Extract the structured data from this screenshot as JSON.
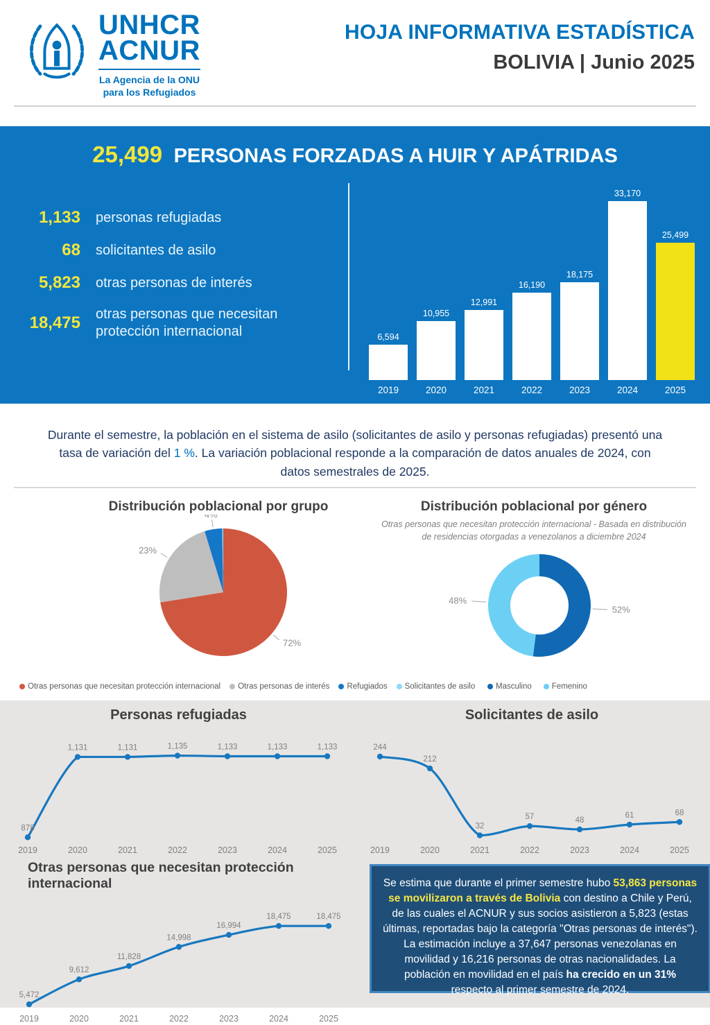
{
  "header": {
    "logo": {
      "line1": "UNHCR",
      "line2": "ACNUR",
      "tagline1": "La Agencia de la ONU",
      "tagline2": "para los Refugiados"
    },
    "title": "HOJA INFORMATIVA ESTADÍSTICA",
    "subtitle": "BOLIVIA | Junio 2025"
  },
  "banner": {
    "total": "25,499",
    "title": "PERSONAS FORZADAS A HUIR Y APÁTRIDAS",
    "stats": [
      {
        "value": "1,133",
        "label": "personas refugiadas"
      },
      {
        "value": "68",
        "label": "solicitantes de asilo"
      },
      {
        "value": "5,823",
        "label": "otras personas de interés"
      },
      {
        "value": "18,475",
        "label": "otras personas que necesitan protección internacional"
      }
    ]
  },
  "variation": {
    "segments": [
      {
        "text": "Durante el semestre, la población en el sistema de asilo (solicitantes de asilo y personas refugiadas) presentó una tasa de variación del ",
        "style": "normal"
      },
      {
        "text": "1 %",
        "style": "blue"
      },
      {
        "text": ". La variación poblacional responde a la comparación de datos anuales de 2024, con datos semestrales de 2025.",
        "style": "normal"
      }
    ]
  },
  "group_legend": {
    "items": [
      {
        "label": "Otras personas que necesitan protección internacional",
        "color": "#d0573f"
      },
      {
        "label": "Otras personas de interés",
        "color": "#bfbebe"
      },
      {
        "label": "Refugiados",
        "color": "#1477c8"
      },
      {
        "label": "Solicitantes de asilo",
        "color": "#8ed8f8"
      }
    ]
  },
  "gender_legend": {
    "items": [
      {
        "label": "Masculino",
        "color": "#1169b4"
      },
      {
        "label": "Femenino",
        "color": "#6cd0f5"
      }
    ]
  },
  "box": {
    "segments": [
      {
        "text": "Se estima que durante el primer semestre hubo ",
        "style": "normal"
      },
      {
        "text": "53,863 personas se movilizaron a través de Bolivia",
        "style": "yellow-bold"
      },
      {
        "text": " con destino a Chile y Perú, de las cuales el ACNUR y sus socios asistieron a 5,823 (estas últimas, reportadas bajo la categoría \"Otras personas de interés\"). La estimación incluye a 37,647 personas venezolanas en movilidad y 16,216 personas de otras nacionalidades. La población en movilidad en el país ",
        "style": "normal"
      },
      {
        "text": "ha crecido en un 31%",
        "style": "white-bold"
      },
      {
        "text": " respecto al primer semestre de 2024.",
        "style": "normal"
      }
    ]
  },
  "chart_data": [
    {
      "type": "bar",
      "title": "Personas forzadas a huir y apátridas por año",
      "categories": [
        "2019",
        "2020",
        "2021",
        "2022",
        "2023",
        "2024",
        "2025"
      ],
      "values": [
        6594,
        10955,
        12991,
        16190,
        18175,
        33170,
        25499
      ],
      "value_labels": [
        "6,594",
        "10,955",
        "12,991",
        "16,190",
        "18,175",
        "33,170",
        "25,499"
      ],
      "highlight_index": 6,
      "bar_color": "#ffffff",
      "highlight_color": "#f0e217",
      "label_color": "#ffffff",
      "ylim": [
        0,
        33170
      ],
      "grid": false,
      "legend": "none"
    },
    {
      "type": "pie",
      "title": "Distribución poblacional por grupo",
      "slices": [
        {
          "label": "Otras personas que necesitan protección internacional",
          "value": 18475,
          "pct_label": "72%",
          "color": "#d0573f"
        },
        {
          "label": "Otras personas de interés",
          "value": 5823,
          "pct_label": "23%",
          "color": "#bfbebe"
        },
        {
          "label": "Refugiados",
          "value": 1133,
          "pct_label": "4%",
          "color": "#1477c8"
        },
        {
          "label": "Solicitantes de asilo",
          "value": 68,
          "pct_label": "",
          "color": "#8ed8f8"
        }
      ],
      "legend_position": "bottom"
    },
    {
      "type": "pie",
      "subtype": "donut",
      "title": "Distribución poblacional por género",
      "subtitle": "Otras personas que necesitan protección internacional - Basada en distribución de residencias otorgadas a venezolanos a diciembre 2024",
      "slices": [
        {
          "label": "Masculino",
          "value": 52,
          "pct_label": "52%",
          "color": "#1169b4"
        },
        {
          "label": "Femenino",
          "value": 48,
          "pct_label": "48%",
          "color": "#6cd0f5"
        }
      ],
      "legend_position": "bottom"
    },
    {
      "type": "line",
      "title": "Personas refugiadas",
      "x": [
        "2019",
        "2020",
        "2021",
        "2022",
        "2023",
        "2024",
        "2025"
      ],
      "values": [
        878,
        1131,
        1131,
        1135,
        1133,
        1133,
        1133
      ],
      "labels": [
        "878",
        "1,131",
        "1,131",
        "1,135",
        "1,133",
        "1,133",
        "1,133"
      ],
      "ylim": [
        870,
        1145
      ],
      "line_color": "#1878bf",
      "grid": false
    },
    {
      "type": "line",
      "title": "Solicitantes de asilo",
      "x": [
        "2019",
        "2020",
        "2021",
        "2022",
        "2023",
        "2024",
        "2025"
      ],
      "values": [
        244,
        212,
        32,
        57,
        48,
        61,
        68
      ],
      "labels": [
        "244",
        "212",
        "32",
        "57",
        "48",
        "61",
        "68"
      ],
      "ylim": [
        20,
        255
      ],
      "line_color": "#1878bf",
      "grid": false
    },
    {
      "type": "line",
      "title": "Otras personas que necesitan protección internacional",
      "x": [
        "2019",
        "2020",
        "2021",
        "2022",
        "2023",
        "2024",
        "2025"
      ],
      "values": [
        5472,
        9612,
        11828,
        14998,
        16994,
        18475,
        18475
      ],
      "labels": [
        "5,472",
        "9,612",
        "11,828",
        "14,998",
        "16,994",
        "18,475",
        "18,475"
      ],
      "ylim": [
        4800,
        19300
      ],
      "line_color": "#1878bf",
      "grid": false
    }
  ],
  "colors": {
    "unhcr_blue": "#0072bc",
    "banner_blue": "#0e76c0",
    "accent_yellow": "#f0e63c",
    "box_navy": "#1f4e79",
    "section_gray": "#e7e5e3",
    "line_blue": "#1878bf"
  }
}
